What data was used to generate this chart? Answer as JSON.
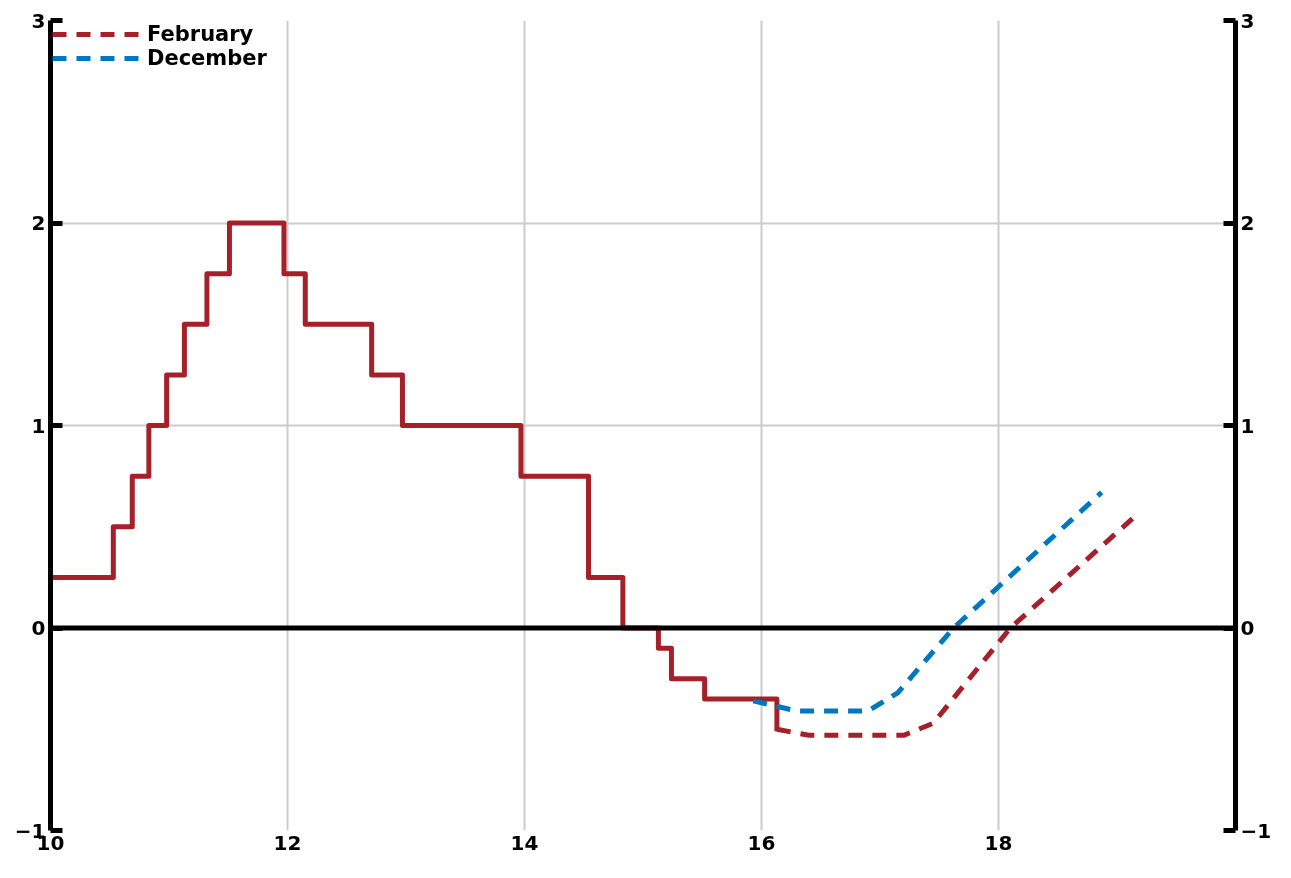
{
  "chart_data": {
    "type": "line",
    "xlim": [
      10,
      20
    ],
    "xticks": [
      10,
      12,
      14,
      16,
      18
    ],
    "ylim": [
      -1,
      3
    ],
    "yticks": [
      -1,
      0,
      1,
      2,
      3
    ],
    "y2lim": [
      -1,
      3
    ],
    "y2ticks": [
      -1,
      0,
      1,
      2,
      3
    ],
    "grid": true,
    "legend": "top left",
    "ref_lines": [
      {
        "axis": "y",
        "value": 0,
        "color": "#000000"
      }
    ],
    "series": [
      {
        "type": "step",
        "color": "#a6202a",
        "line_style": "solid",
        "x": [
          10,
          10.53,
          10.69,
          10.83,
          10.98,
          11.13,
          11.32,
          11.51,
          11.97,
          12.15,
          12.71,
          12.97,
          13.97,
          14.54,
          14.83,
          15.13,
          15.24,
          15.52,
          16.13
        ],
        "values": [
          0.25,
          0.5,
          0.75,
          1.0,
          1.25,
          1.5,
          1.75,
          2.0,
          1.75,
          1.5,
          1.25,
          1.0,
          0.75,
          0.25,
          0,
          -0.1,
          -0.25,
          -0.35,
          -0.51
        ]
      },
      {
        "name": "February",
        "color": "#a6202a",
        "line_style": "dashed",
        "x": [
          16.13,
          16.4,
          16.8,
          17.2,
          17.45,
          18.1,
          19.13
        ],
        "values": [
          -0.5,
          -0.53,
          -0.53,
          -0.53,
          -0.47,
          0.0,
          0.54
        ]
      },
      {
        "name": "December",
        "color": "#0077c0",
        "line_style": "dashed",
        "x": [
          15.93,
          16.3,
          16.6,
          16.9,
          17.15,
          17.62,
          18.87
        ],
        "values": [
          -0.36,
          -0.41,
          -0.41,
          -0.41,
          -0.32,
          0.0,
          0.67
        ]
      }
    ]
  }
}
